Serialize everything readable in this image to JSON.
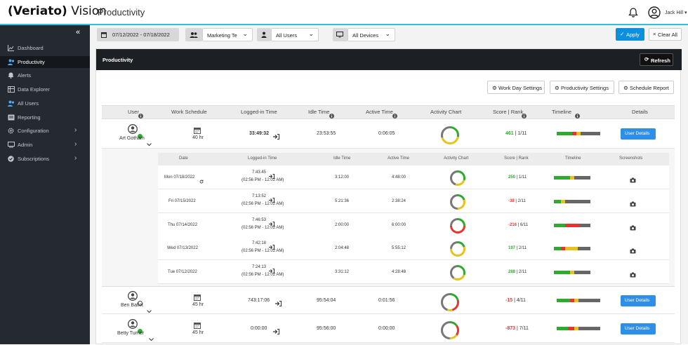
{
  "topbar": {
    "logo_bracket_left": "(",
    "logo_brand": "Veriato",
    "logo_bracket_right": ")",
    "logo_product": "Vision",
    "page_title": "Productivity",
    "user_name": "Jack Hill"
  },
  "sidebar": {
    "collapse_glyph": "«",
    "items": [
      {
        "label": "Dashboard",
        "icon": "chart-icon",
        "active": false,
        "chevron": false
      },
      {
        "label": "Productivity",
        "icon": "users-icon",
        "active": true,
        "chevron": false
      },
      {
        "label": "Alerts",
        "icon": "bell-icon",
        "active": false,
        "chevron": false
      },
      {
        "label": "Data Explorer",
        "icon": "table-icon",
        "active": false,
        "chevron": false
      },
      {
        "label": "All Users",
        "icon": "users-icon",
        "active": false,
        "chevron": false
      },
      {
        "label": "Reporting",
        "icon": "report-icon",
        "active": false,
        "chevron": false
      },
      {
        "label": "Configuration",
        "icon": "gear-icon",
        "active": false,
        "chevron": true
      },
      {
        "label": "Admin",
        "icon": "admin-icon",
        "active": false,
        "chevron": true
      },
      {
        "label": "Subscriptions",
        "icon": "check-icon",
        "active": false,
        "chevron": true
      }
    ]
  },
  "filters": {
    "date_range": "07/12/2022 - 07/18/2022",
    "team": "Marketing Te",
    "users": "All Users",
    "devices": "All Devices",
    "apply": "Apply",
    "clear": "Clear All"
  },
  "panel": {
    "title": "Productivity",
    "refresh": "Refresh",
    "work_day_settings": "Work Day Settings",
    "productivity_settings": "Productivity Settings",
    "schedule_report": "Schedule Report"
  },
  "table": {
    "headers": [
      "User",
      "Work Schedule",
      "Logged-in Time",
      "Idle Time",
      "Active Time",
      "Activity Chart",
      "Score | Rank",
      "Timeline",
      "Details"
    ],
    "rows": [
      {
        "name": "Art Gotham",
        "online": true,
        "schedule": "40 hr",
        "logged": "33:49:32",
        "idle": "23:53:55",
        "active": "0:06:05",
        "score": "461",
        "rank": "1/11",
        "score_color": "#2eaa2e",
        "details": "User Details",
        "chart": [
          [
            "#2eaa2e",
            0.28
          ],
          [
            "#e8c21a",
            0.42
          ],
          [
            "#777",
            0.3
          ]
        ],
        "timeline": [
          [
            "#2eaa2e",
            0.35
          ],
          [
            "#e6352e",
            0.1
          ],
          [
            "#e8c21a",
            0.1
          ],
          [
            "#666",
            0.45
          ]
        ]
      },
      {
        "name": "Ben Ballot",
        "online": false,
        "schedule": "45 hr",
        "logged": "743:17:06",
        "idle": "95:54:04",
        "active": "0:01:56",
        "score": "-15",
        "rank": "4/11",
        "score_color": "#e6352e",
        "details": "User Details",
        "chart": [
          [
            "#2eaa2e",
            0.2
          ],
          [
            "#e6352e",
            0.25
          ],
          [
            "#e8c21a",
            0.1
          ],
          [
            "#777",
            0.45
          ]
        ],
        "timeline": [
          [
            "#2eaa2e",
            0.3
          ],
          [
            "#e6352e",
            0.1
          ],
          [
            "#e8c21a",
            0.1
          ],
          [
            "#666",
            0.5
          ]
        ]
      },
      {
        "name": "Betty Turner",
        "online": true,
        "schedule": "45 hr",
        "logged": "0:00:00",
        "idle": "95:56:00",
        "active": "0:00:00",
        "score": "-873",
        "rank": "7/11",
        "score_color": "#e6352e",
        "details": "User Details",
        "chart": [
          [
            "#2eaa2e",
            0.15
          ],
          [
            "#e6352e",
            0.2
          ],
          [
            "#e8c21a",
            0.15
          ],
          [
            "#777",
            0.5
          ]
        ],
        "timeline": [
          [
            "#2eaa2e",
            0.25
          ],
          [
            "#e6352e",
            0.15
          ],
          [
            "#e8c21a",
            0.1
          ],
          [
            "#666",
            0.5
          ]
        ]
      }
    ]
  },
  "subtable": {
    "headers": [
      "Date",
      "Logged-in Time",
      "Idle Time",
      "Active Time",
      "Activity Chart",
      "Score | Rank",
      "Timeline",
      "Screenshots"
    ],
    "rows": [
      {
        "date": "Mon 07/18/2022",
        "logged": "7:43:45",
        "span": "(02:56 PM - 12:02 AM)",
        "idle": "3:12:00",
        "active": "4:48:00",
        "score": "250",
        "rank": "1/11",
        "score_color": "#2eaa2e",
        "refresh": true,
        "chart": [
          [
            "#2eaa2e",
            0.3
          ],
          [
            "#e8c21a",
            0.25
          ],
          [
            "#777",
            0.45
          ]
        ],
        "timeline": [
          [
            "#2eaa2e",
            0.45
          ],
          [
            "#e8c21a",
            0.1
          ],
          [
            "#666",
            0.45
          ]
        ]
      },
      {
        "date": "Fri 07/15/2022",
        "logged": "7:13:52",
        "span": "(02:56 PM - 12:02 AM)",
        "idle": "5:21:36",
        "active": "2:38:24",
        "score": "-38",
        "rank": "2/11",
        "score_color": "#e6352e",
        "refresh": false,
        "chart": [
          [
            "#2eaa2e",
            0.2
          ],
          [
            "#e8c21a",
            0.3
          ],
          [
            "#777",
            0.5
          ]
        ],
        "timeline": [
          [
            "#2eaa2e",
            0.2
          ],
          [
            "#e8c21a",
            0.1
          ],
          [
            "#666",
            0.7
          ]
        ]
      },
      {
        "date": "Thu 07/14/2022",
        "logged": "7:46:53",
        "span": "(02:56 PM - 12:02 AM)",
        "idle": "2:00:00",
        "active": "6:00:00",
        "score": "-216",
        "rank": "6/11",
        "score_color": "#e6352e",
        "refresh": false,
        "chart": [
          [
            "#2eaa2e",
            0.25
          ],
          [
            "#e6352e",
            0.5
          ],
          [
            "#777",
            0.25
          ]
        ],
        "timeline": [
          [
            "#2eaa2e",
            0.3
          ],
          [
            "#e6352e",
            0.4
          ],
          [
            "#666",
            0.3
          ]
        ]
      },
      {
        "date": "Wed 07/13/2022",
        "logged": "7:42:18",
        "span": "(02:56 PM - 12:02 AM)",
        "idle": "2:04:48",
        "active": "5:55:12",
        "score": "197",
        "rank": "2/11",
        "score_color": "#2eaa2e",
        "refresh": false,
        "chart": [
          [
            "#2eaa2e",
            0.2
          ],
          [
            "#e8c21a",
            0.55
          ],
          [
            "#777",
            0.25
          ]
        ],
        "timeline": [
          [
            "#2eaa2e",
            0.2
          ],
          [
            "#e6352e",
            0.1
          ],
          [
            "#e8c21a",
            0.35
          ],
          [
            "#666",
            0.35
          ]
        ]
      },
      {
        "date": "Tue 07/12/2022",
        "logged": "7:24:13",
        "span": "(02:56 PM - 12:02 AM)",
        "idle": "3:31:12",
        "active": "4:28:48",
        "score": "288",
        "rank": "2/11",
        "score_color": "#2eaa2e",
        "refresh": false,
        "chart": [
          [
            "#2eaa2e",
            0.3
          ],
          [
            "#e8c21a",
            0.3
          ],
          [
            "#777",
            0.4
          ]
        ],
        "timeline": [
          [
            "#2eaa2e",
            0.45
          ],
          [
            "#e8c21a",
            0.1
          ],
          [
            "#666",
            0.45
          ]
        ]
      }
    ]
  }
}
